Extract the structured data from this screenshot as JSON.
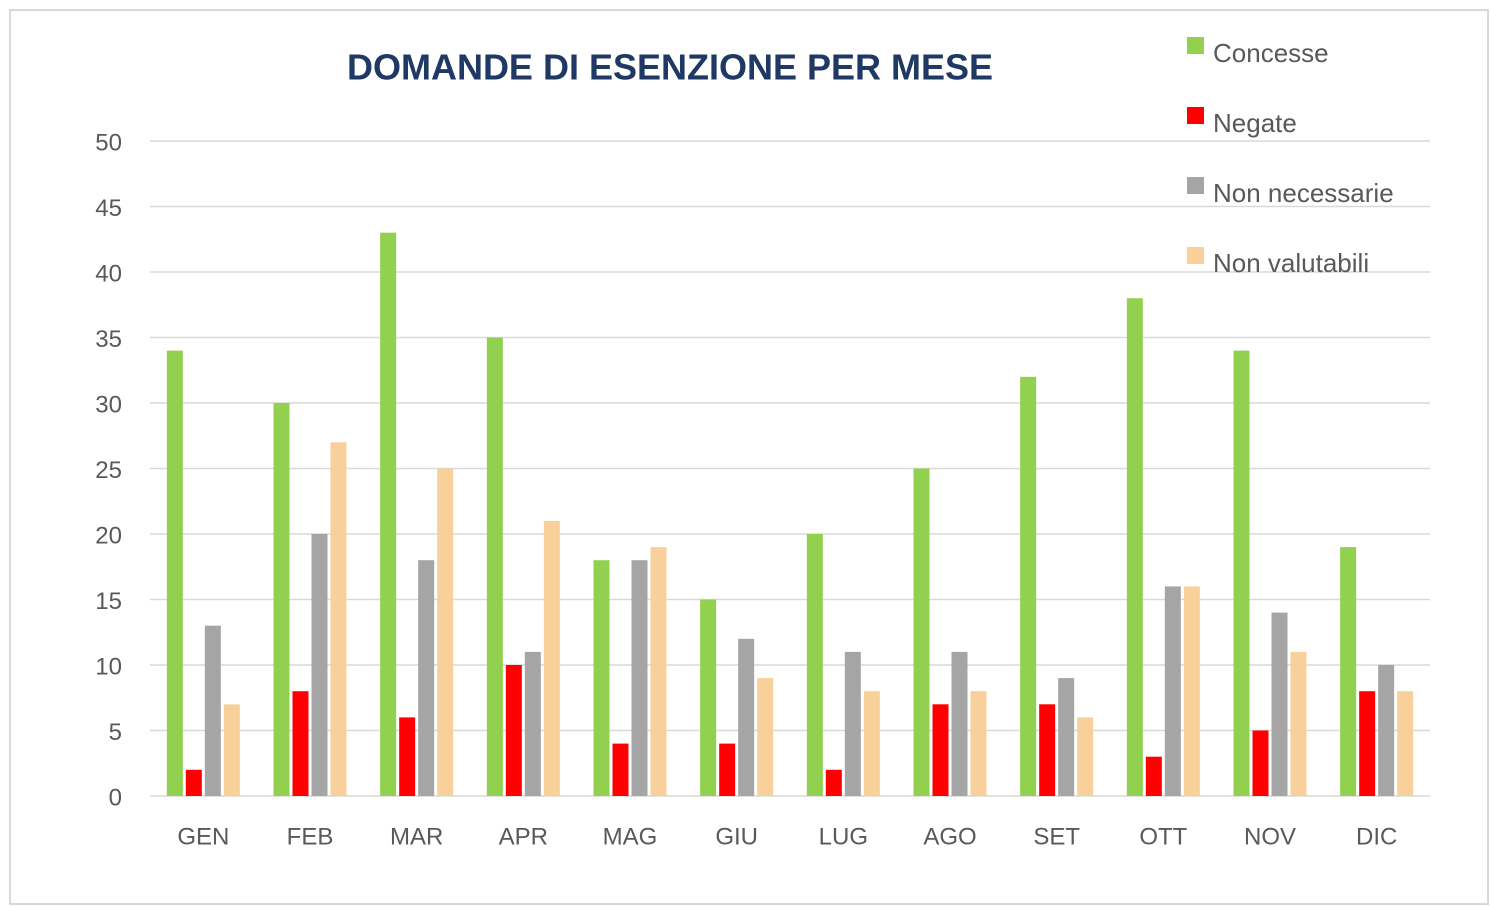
{
  "chart_data": {
    "type": "bar",
    "title": "DOMANDE DI ESENZIONE PER MESE",
    "categories": [
      "GEN",
      "FEB",
      "MAR",
      "APR",
      "MAG",
      "GIU",
      "LUG",
      "AGO",
      "SET",
      "OTT",
      "NOV",
      "DIC"
    ],
    "series": [
      {
        "name": "Concesse",
        "color": "#92d050",
        "values": [
          34,
          30,
          43,
          35,
          18,
          15,
          20,
          25,
          32,
          38,
          34,
          19
        ]
      },
      {
        "name": "Negate",
        "color": "#ff0000",
        "values": [
          2,
          8,
          6,
          10,
          4,
          4,
          2,
          7,
          7,
          3,
          5,
          8
        ]
      },
      {
        "name": "Non necessarie",
        "color": "#a5a5a5",
        "values": [
          13,
          20,
          18,
          11,
          18,
          12,
          11,
          11,
          9,
          16,
          14,
          10
        ]
      },
      {
        "name": "Non valutabili",
        "color": "#f8d19a",
        "values": [
          7,
          27,
          25,
          21,
          19,
          9,
          8,
          8,
          6,
          16,
          11,
          8
        ]
      }
    ],
    "ylim": [
      0,
      50
    ],
    "yticks": [
      0,
      5,
      10,
      15,
      20,
      25,
      30,
      35,
      40,
      45,
      50
    ],
    "grid": true,
    "legend": "top-right"
  }
}
